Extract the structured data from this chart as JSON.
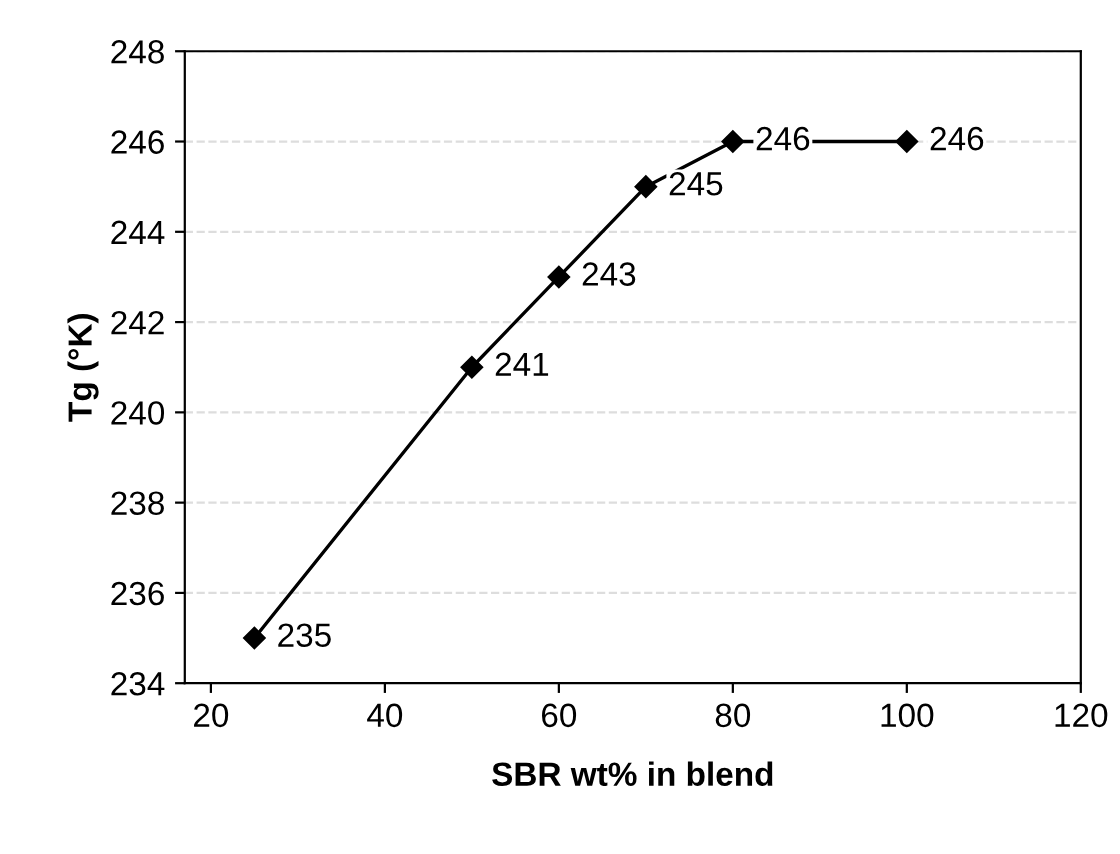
{
  "chart_data": {
    "type": "line",
    "xlabel": "SBR wt% in blend",
    "ylabel": "Tg (°K)",
    "x": [
      25,
      50,
      60,
      70,
      80,
      100
    ],
    "series": [
      {
        "color": "#000000",
        "values": [
          235,
          241,
          243,
          245,
          246,
          246
        ]
      }
    ],
    "xlim": [
      17,
      120
    ],
    "xticks": [
      20,
      40,
      60,
      80,
      100,
      120
    ],
    "ylim": [
      234,
      248
    ],
    "yticks": [
      234,
      236,
      238,
      240,
      242,
      244,
      246,
      248
    ],
    "grid": "y",
    "marker": "diamond",
    "line_style": "solid",
    "data_labels": true
  }
}
